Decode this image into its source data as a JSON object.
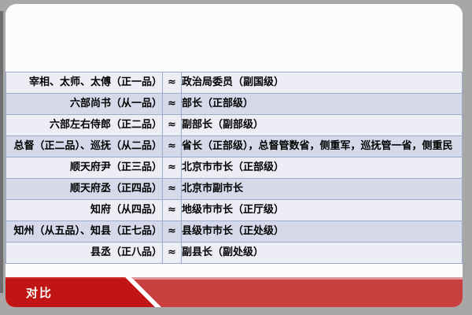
{
  "window": {
    "background_color": "#a7a7a7"
  },
  "slide": {
    "surface_color": "#fcfcfd"
  },
  "table": {
    "approx_symbol": "≈",
    "rows": [
      {
        "ancient": "宰相、太师、太傅（正一品）",
        "modern": "政治局委员（副国级）"
      },
      {
        "ancient": "六部尚书（从一品）",
        "modern": "部长（正部级）"
      },
      {
        "ancient": "六部左右侍郎（正二品）",
        "modern": "副部长（副部级）"
      },
      {
        "ancient": "总督（正二品）、巡抚（从二品）",
        "modern": "省长（正部级），总督管数省，侧重军，巡抚管一省，侧重民"
      },
      {
        "ancient": "顺天府尹（正三品）",
        "modern": "北京市市长（正部级）"
      },
      {
        "ancient": "顺天府丞（正四品）",
        "modern": "北京市副市长"
      },
      {
        "ancient": "知府（从四品）",
        "modern": "地级市市长（正厅级）"
      },
      {
        "ancient": "知州（从五品）、知县（正七品）",
        "modern": "县级市市长（正处级）"
      },
      {
        "ancient": "县丞（正八品）",
        "modern": "副县长（副处级）"
      }
    ],
    "colors": {
      "row_light": "#ecedf5",
      "row_dark": "#d5d9ea",
      "border": "#9baccd",
      "text": "#000000"
    }
  },
  "footer": {
    "label": "对比",
    "colors": {
      "dark_red": "#c11414",
      "light_red": "#c93f3f",
      "pink_line": "#de979a",
      "label_text": "#ffffff"
    }
  }
}
